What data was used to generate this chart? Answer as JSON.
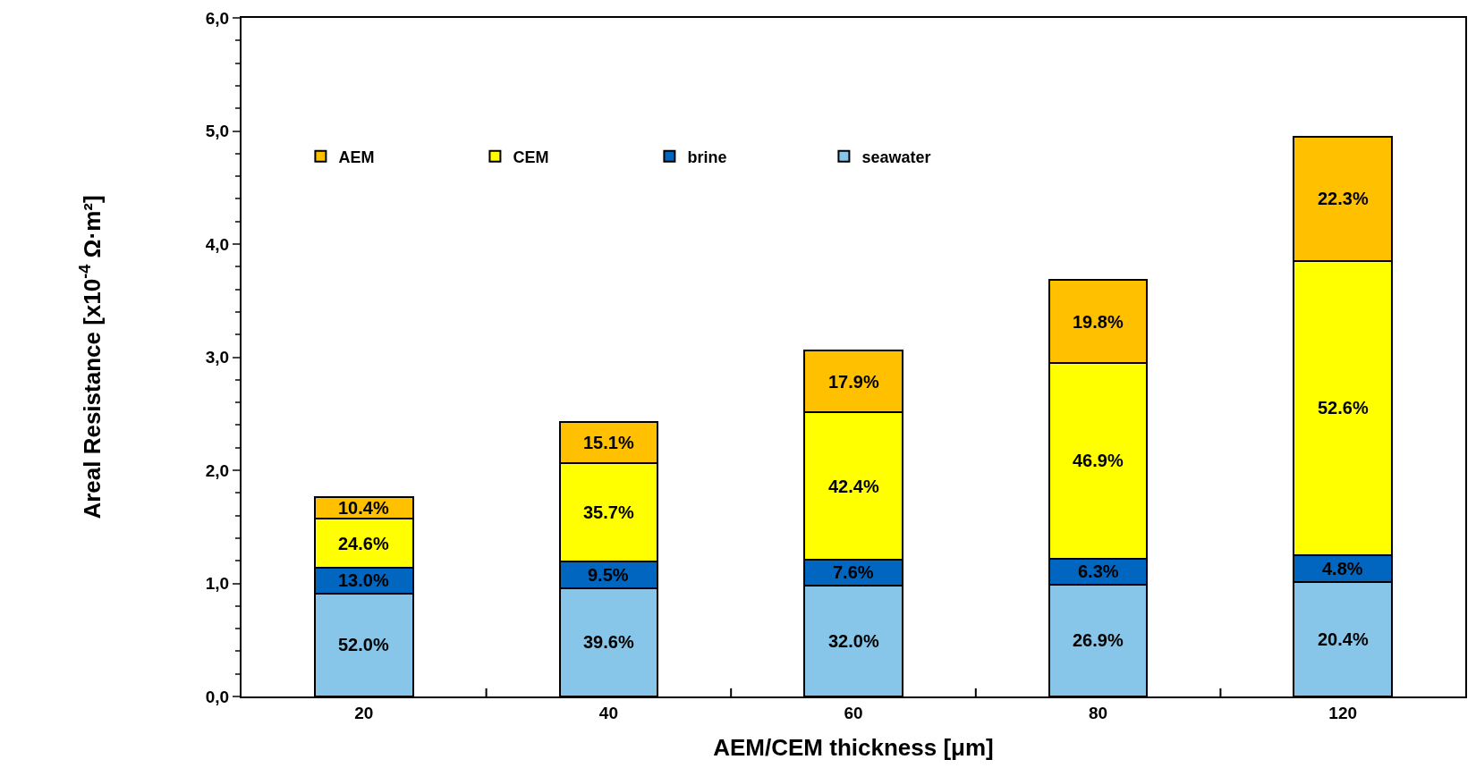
{
  "chart_data": {
    "type": "bar",
    "stacked": true,
    "xlabel": "AEM/CEM thickness [μm]",
    "ylabel": "Areal Resistance [x10$^{-4}$ Ω·m²]",
    "categories": [
      "20",
      "40",
      "60",
      "80",
      "120"
    ],
    "series": [
      {
        "name": "seawater",
        "color": "#87c6e8",
        "values": [
          0.91,
          0.96,
          0.98,
          0.99,
          1.01
        ]
      },
      {
        "name": "brine",
        "color": "#0066c0",
        "values": [
          0.23,
          0.23,
          0.23,
          0.23,
          0.24
        ]
      },
      {
        "name": "CEM",
        "color": "#ffff00",
        "values": [
          0.43,
          0.87,
          1.3,
          1.73,
          2.6
        ]
      },
      {
        "name": "AEM",
        "color": "#ffc000",
        "values": [
          0.19,
          0.37,
          0.55,
          0.73,
          1.1
        ]
      }
    ],
    "annotations": [
      "52.0%",
      "39.6%",
      "32.0%",
      "26.9%",
      "20.4%",
      "13.0%",
      "9.5%",
      "7.6%",
      "6.3%",
      "4.8%",
      "24.6%",
      "35.7%",
      "42.4%",
      "46.9%",
      "52.6%",
      "10.4%",
      "15.1%",
      "17.9%",
      "19.8%",
      "22.3%"
    ],
    "ylim": [
      0,
      6
    ],
    "yticks": [
      {
        "value": 0,
        "label": "0,0"
      },
      {
        "value": 1,
        "label": "1,0"
      },
      {
        "value": 2,
        "label": "2,0"
      },
      {
        "value": 3,
        "label": "3,0"
      },
      {
        "value": 4,
        "label": "4,0"
      },
      {
        "value": 5,
        "label": "5,0"
      },
      {
        "value": 6,
        "label": "6,0"
      }
    ],
    "legend": "top left"
  }
}
